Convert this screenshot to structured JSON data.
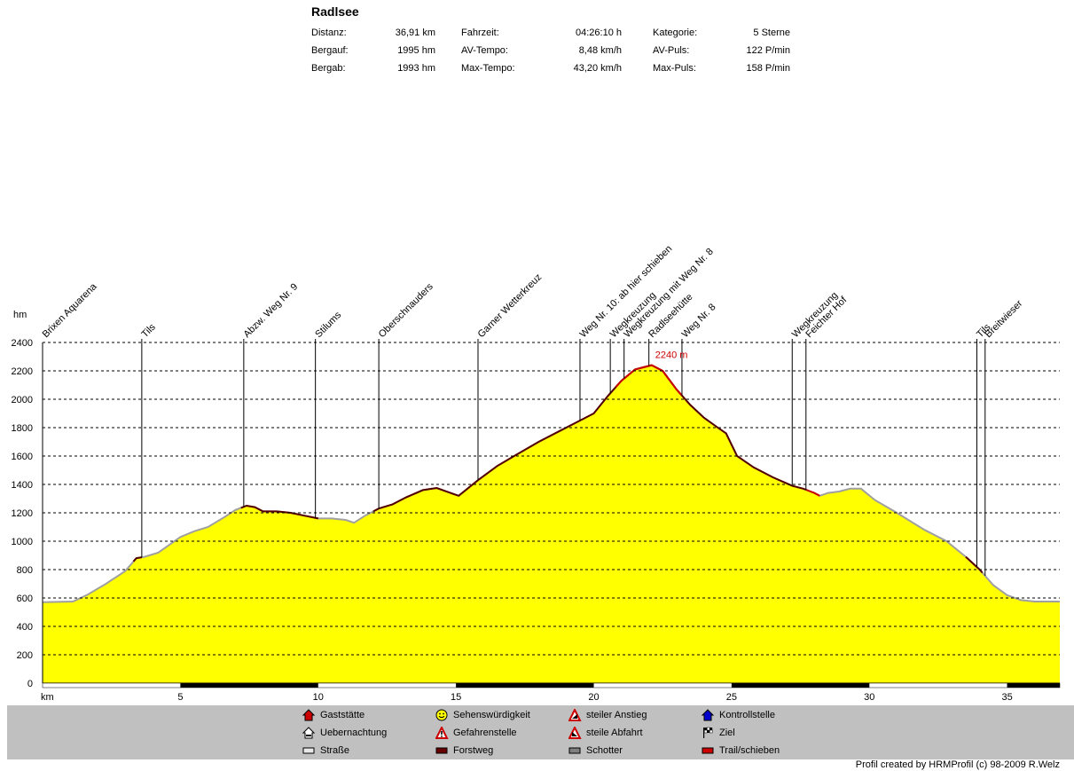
{
  "title": "Radlsee",
  "stats": [
    {
      "label": "Distanz:",
      "value": "36,91 km"
    },
    {
      "label": "Bergauf:",
      "value": "1995 hm"
    },
    {
      "label": "Bergab:",
      "value": "1993 hm"
    },
    {
      "label": "Fahrzeit:",
      "value": "04:26:10 h"
    },
    {
      "label": "AV-Tempo:",
      "value": "8,48 km/h"
    },
    {
      "label": "Max-Tempo:",
      "value": "43,20 km/h"
    },
    {
      "label": "Kategorie:",
      "value": "5 Sterne"
    },
    {
      "label": "AV-Puls:",
      "value": "122 P/min"
    },
    {
      "label": "Max-Puls:",
      "value": "158 P/min"
    }
  ],
  "chart_data": {
    "type": "area",
    "ylabel": "hm",
    "xlabel": "km",
    "ylim": [
      0,
      2400
    ],
    "xlim": [
      0,
      36.91
    ],
    "yticks": [
      0,
      200,
      400,
      600,
      800,
      1000,
      1200,
      1400,
      1600,
      1800,
      2000,
      2200,
      2400
    ],
    "xticks": [
      5,
      10,
      15,
      20,
      25,
      30,
      35
    ],
    "grid": "horizontal dashed",
    "fill_color": "#ffff00",
    "profile": {
      "x": [
        0,
        1.1,
        1.6,
        2.3,
        3.0,
        3.4,
        3.7,
        4.2,
        5.0,
        5.5,
        6.0,
        6.6,
        7.0,
        7.4,
        7.7,
        8.0,
        8.5,
        9.0,
        9.5,
        10.0,
        10.5,
        11.0,
        11.3,
        11.7,
        12.2,
        12.7,
        13.2,
        13.8,
        14.3,
        14.8,
        15.1,
        15.8,
        16.5,
        17.2,
        18.0,
        18.8,
        19.5,
        20.0,
        20.5,
        21.0,
        21.5,
        21.8,
        22.1,
        22.5,
        23.0,
        23.5,
        24.0,
        24.5,
        24.8,
        25.2,
        25.8,
        26.5,
        27.2,
        27.6,
        28.0,
        28.2,
        28.5,
        28.9,
        29.3,
        29.7,
        30.2,
        31.0,
        32.0,
        32.8,
        33.5,
        34.0,
        34.5,
        35.0,
        35.5,
        36.0,
        36.91
      ],
      "y": [
        570,
        575,
        620,
        700,
        790,
        880,
        890,
        920,
        1030,
        1070,
        1100,
        1170,
        1220,
        1250,
        1240,
        1210,
        1210,
        1200,
        1180,
        1160,
        1160,
        1150,
        1130,
        1180,
        1230,
        1260,
        1310,
        1360,
        1375,
        1340,
        1320,
        1430,
        1530,
        1610,
        1700,
        1780,
        1850,
        1900,
        2020,
        2130,
        2210,
        2225,
        2240,
        2200,
        2070,
        1960,
        1870,
        1800,
        1760,
        1600,
        1520,
        1450,
        1390,
        1370,
        1340,
        1320,
        1340,
        1350,
        1370,
        1370,
        1290,
        1200,
        1080,
        1000,
        890,
        800,
        690,
        620,
        585,
        575,
        575
      ]
    },
    "segments": [
      {
        "type": "Forstweg",
        "color": "#550000",
        "x0": 3.3,
        "x1": 3.6
      },
      {
        "type": "Forstweg",
        "color": "#550000",
        "x0": 7.2,
        "x1": 10.0
      },
      {
        "type": "Forstweg",
        "color": "#550000",
        "x0": 12.0,
        "x1": 27.7
      },
      {
        "type": "Trail/schieben",
        "color": "#cc0000",
        "x0": 20.8,
        "x1": 23.2
      },
      {
        "type": "Trail/schieben",
        "color": "#cc0000",
        "x0": 27.7,
        "x1": 28.2
      },
      {
        "type": "Forstweg",
        "color": "#550000",
        "x0": 33.5,
        "x1": 34.1
      }
    ],
    "road_color": "#a0a0a0",
    "max_label": "2240 m",
    "max_x": 22.1,
    "max_y": 2240,
    "waypoints": [
      {
        "name": "Brixen Aquarena",
        "km": 0.0
      },
      {
        "name": "Tils",
        "km": 3.6
      },
      {
        "name": "Abzw. Weg Nr. 9",
        "km": 7.3
      },
      {
        "name": "Stilums",
        "km": 9.9
      },
      {
        "name": "Oberschnauders",
        "km": 12.2
      },
      {
        "name": "Garner Wetterkreuz",
        "km": 15.8
      },
      {
        "name": "Weg Nr. 10: ab hier schieben",
        "km": 19.5
      },
      {
        "name": "Wegkreuzung",
        "km": 20.6
      },
      {
        "name": "Wegkreuzung mit Weg Nr. 8",
        "km": 21.1
      },
      {
        "name": "Radlseehütte",
        "km": 22.0
      },
      {
        "name": "Weg Nr. 8",
        "km": 23.2
      },
      {
        "name": "Wegkreuzung",
        "km": 27.2
      },
      {
        "name": "Feichter Hof",
        "km": 27.7
      },
      {
        "name": "Tils",
        "km": 33.9
      },
      {
        "name": "Breitwieser",
        "km": 34.2
      }
    ]
  },
  "legend": [
    {
      "label": "Gaststätte",
      "icon": "house-red-icon",
      "color": "#cc0000"
    },
    {
      "label": "Sehenswürdigkeit",
      "icon": "smiley-icon",
      "color": "#ffff00"
    },
    {
      "label": "steiler Anstieg",
      "icon": "warning-triangle-icon",
      "color": "#cc0000"
    },
    {
      "label": "Kontrollstelle",
      "icon": "house-blue-icon",
      "color": "#0000cc"
    },
    {
      "label": "Uebernachtung",
      "icon": "bed-house-icon",
      "color": "#ffffff"
    },
    {
      "label": "Gefahrenstelle",
      "icon": "danger-triangle-icon",
      "color": "#cc0000"
    },
    {
      "label": "steile Abfahrt",
      "icon": "warning-triangle-icon",
      "color": "#cc0000"
    },
    {
      "label": "Ziel",
      "icon": "finish-flag-icon",
      "color": "#000000"
    },
    {
      "label": "Straße",
      "icon": "road-swatch-icon",
      "color": "#e8e8e8"
    },
    {
      "label": "Forstweg",
      "icon": "forest-road-swatch-icon",
      "color": "#660000"
    },
    {
      "label": "Schotter",
      "icon": "gravel-swatch-icon",
      "color": "#808080"
    },
    {
      "label": "Trail/schieben",
      "icon": "trail-swatch-icon",
      "color": "#cc0000"
    }
  ],
  "credit": "Profil created by HRMProfil (c) 98-2009 R.Welz"
}
